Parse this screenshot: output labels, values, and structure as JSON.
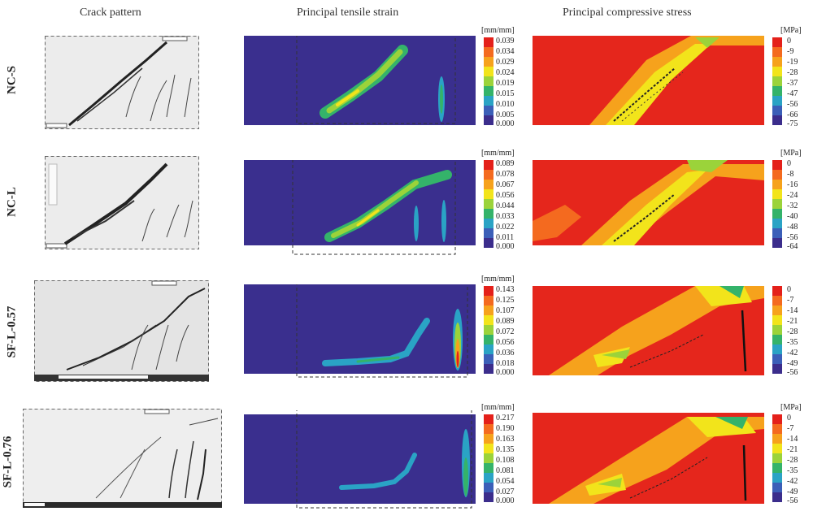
{
  "headers": {
    "crack": "Crack pattern",
    "tensile": "Principal tensile strain",
    "compressive": "Principal compressive stress"
  },
  "rows": [
    {
      "label": "NC-S",
      "strain_unit": "[mm/mm]",
      "strain_ticks": [
        "0.039",
        "0.034",
        "0.029",
        "0.024",
        "0.019",
        "0.015",
        "0.010",
        "0.005",
        "0.000"
      ],
      "stress_unit": "[MPa]",
      "stress_ticks": [
        "0",
        "-9",
        "-19",
        "-28",
        "-37",
        "-47",
        "-56",
        "-66",
        "-75"
      ]
    },
    {
      "label": "NC-L",
      "strain_unit": "[mm/mm]",
      "strain_ticks": [
        "0.089",
        "0.078",
        "0.067",
        "0.056",
        "0.044",
        "0.033",
        "0.022",
        "0.011",
        "0.000"
      ],
      "stress_unit": "[MPa]",
      "stress_ticks": [
        "0",
        "-8",
        "-16",
        "-24",
        "-32",
        "-40",
        "-48",
        "-56",
        "-64"
      ]
    },
    {
      "label": "SF-L-0.57",
      "strain_unit": "[mm/mm]",
      "strain_ticks": [
        "0.143",
        "0.125",
        "0.107",
        "0.089",
        "0.072",
        "0.056",
        "0.036",
        "0.018",
        "0.000"
      ],
      "stress_unit": "[MPa]",
      "stress_ticks": [
        "0",
        "-7",
        "-14",
        "-21",
        "-28",
        "-35",
        "-42",
        "-49",
        "-56"
      ]
    },
    {
      "label": "SF-L-0.76",
      "strain_unit": "[mm/mm]",
      "strain_ticks": [
        "0.217",
        "0.190",
        "0.163",
        "0.135",
        "0.108",
        "0.081",
        "0.054",
        "0.027",
        "0.000"
      ],
      "stress_unit": "[MPa]",
      "stress_ticks": [
        "0",
        "-7",
        "-14",
        "-21",
        "-28",
        "-35",
        "-42",
        "-49",
        "-56"
      ]
    }
  ],
  "colors": {
    "strain_scale": [
      "#e4201a",
      "#f46a1f",
      "#f6a21c",
      "#f2e41b",
      "#9bd33a",
      "#34b36a",
      "#2aa3c5",
      "#3b5fb8",
      "#3b2d8c"
    ],
    "stress_scale": [
      "#e4201a",
      "#f46a1f",
      "#f6a21c",
      "#f2e41b",
      "#9bd33a",
      "#34b36a",
      "#2aa3c5",
      "#3b5fb8",
      "#3b2d8c"
    ],
    "strain_background": "#3a2f8e",
    "stress_background": "#e5261c",
    "photo_background": "#ececec"
  }
}
